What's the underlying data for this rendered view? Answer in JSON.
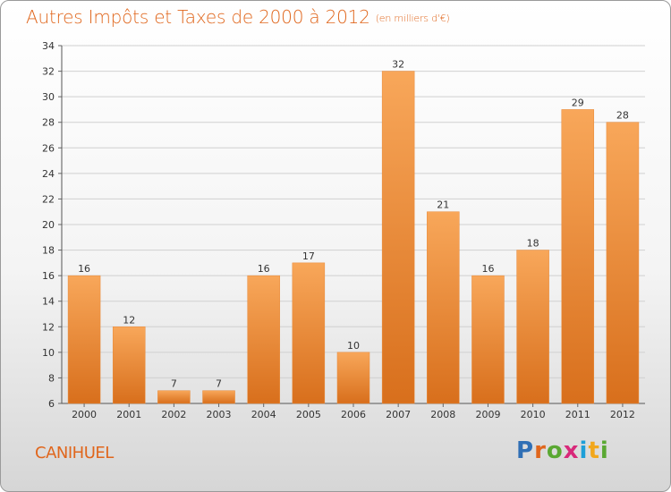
{
  "header": {
    "title": "Autres Impôts et Taxes de 2000 à 2012",
    "subtitle": "(en milliers d'€)"
  },
  "footer": {
    "commune": "CANIHUEL",
    "logo_letters": [
      "P",
      "r",
      "o",
      "x",
      "i",
      "t",
      "i"
    ],
    "logo_colors": [
      "#2f6fb5",
      "#e0661c",
      "#5aa832",
      "#d8297a",
      "#1d9fd8",
      "#f2a71b",
      "#5aa832"
    ]
  },
  "colors": {
    "bar_light": "#f8a75a",
    "bar_dark": "#d86f1c",
    "grid": "#d0d0d0",
    "accent": "#e0661c"
  },
  "chart_data": {
    "type": "bar",
    "title": "Autres Impôts et Taxes de 2000 à 2012",
    "subtitle": "(en milliers d'€)",
    "categories": [
      "2000",
      "2001",
      "2002",
      "2003",
      "2004",
      "2005",
      "2006",
      "2007",
      "2008",
      "2009",
      "2010",
      "2011",
      "2012"
    ],
    "values": [
      16,
      12,
      7,
      7,
      16,
      17,
      10,
      32,
      21,
      16,
      18,
      29,
      28
    ],
    "ylim": [
      6,
      34
    ],
    "yticks": [
      6,
      8,
      10,
      12,
      14,
      16,
      18,
      20,
      22,
      24,
      26,
      28,
      30,
      32,
      34
    ],
    "grid": true
  }
}
